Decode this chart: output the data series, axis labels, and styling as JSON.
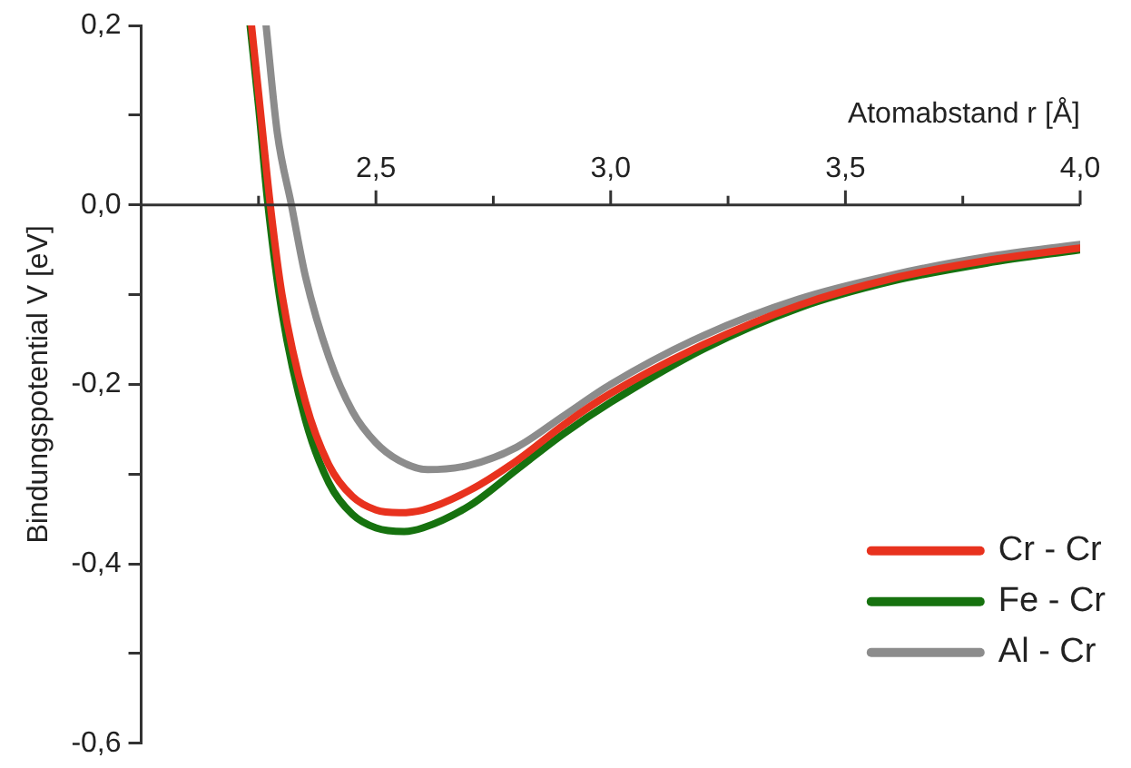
{
  "chart_data": {
    "type": "line",
    "xlabel": "Atomabstand r [Å]",
    "ylabel": "Bindungspotential V [eV]",
    "xlim": [
      2.0,
      4.0
    ],
    "ylim": [
      -0.6,
      0.2
    ],
    "xticks": [
      {
        "value": 2.25,
        "label": null
      },
      {
        "value": 2.5,
        "label": "2,5"
      },
      {
        "value": 2.75,
        "label": null
      },
      {
        "value": 3.0,
        "label": "3,0"
      },
      {
        "value": 3.25,
        "label": null
      },
      {
        "value": 3.5,
        "label": "3,5"
      },
      {
        "value": 3.75,
        "label": null
      },
      {
        "value": 4.0,
        "label": "4,0"
      }
    ],
    "yticks": [
      {
        "value": 0.2,
        "label": "0,2"
      },
      {
        "value": 0.1,
        "label": null
      },
      {
        "value": 0,
        "label": "0,0"
      },
      {
        "value": -0.1,
        "label": null
      },
      {
        "value": -0.2,
        "label": "-0,2"
      },
      {
        "value": -0.3,
        "label": null
      },
      {
        "value": -0.4,
        "label": "-0,4"
      },
      {
        "value": -0.5,
        "label": null
      },
      {
        "value": -0.6,
        "label": "-0,6"
      }
    ],
    "grid": false,
    "legend": "bottom right",
    "marker": "none",
    "line_style": "solid",
    "series": [
      {
        "name": "Cr - Cr",
        "color": "#e8321e",
        "x": [
          2.235,
          2.25,
          2.275,
          2.3,
          2.35,
          2.4,
          2.45,
          2.5,
          2.55,
          2.6,
          2.7,
          2.8,
          2.9,
          3.0,
          3.2,
          3.4,
          3.6,
          3.8,
          4.0
        ],
        "values": [
          0.2,
          0.125,
          0,
          -0.1,
          -0.22,
          -0.29,
          -0.325,
          -0.34,
          -0.343,
          -0.34,
          -0.318,
          -0.285,
          -0.245,
          -0.21,
          -0.155,
          -0.112,
          -0.082,
          -0.062,
          -0.048
        ]
      },
      {
        "name": "Fe - Cr",
        "color": "#16720f",
        "x": [
          2.232,
          2.25,
          2.27,
          2.3,
          2.35,
          2.4,
          2.45,
          2.5,
          2.56,
          2.6,
          2.7,
          2.8,
          2.9,
          3.0,
          3.2,
          3.4,
          3.6,
          3.8,
          4.0
        ],
        "values": [
          0.2,
          0.11,
          0,
          -0.12,
          -0.24,
          -0.31,
          -0.345,
          -0.36,
          -0.364,
          -0.36,
          -0.335,
          -0.295,
          -0.255,
          -0.22,
          -0.16,
          -0.115,
          -0.085,
          -0.065,
          -0.05
        ]
      },
      {
        "name": "Al - Cr",
        "color": "#8c8c8c",
        "x": [
          2.266,
          2.29,
          2.32,
          2.35,
          2.4,
          2.45,
          2.5,
          2.55,
          2.61,
          2.7,
          2.8,
          2.9,
          3.0,
          3.2,
          3.4,
          3.6,
          3.8,
          4.0
        ],
        "values": [
          0.2,
          0.08,
          0,
          -0.08,
          -0.17,
          -0.23,
          -0.265,
          -0.285,
          -0.295,
          -0.29,
          -0.27,
          -0.235,
          -0.2,
          -0.145,
          -0.105,
          -0.078,
          -0.058,
          -0.044
        ]
      }
    ]
  }
}
